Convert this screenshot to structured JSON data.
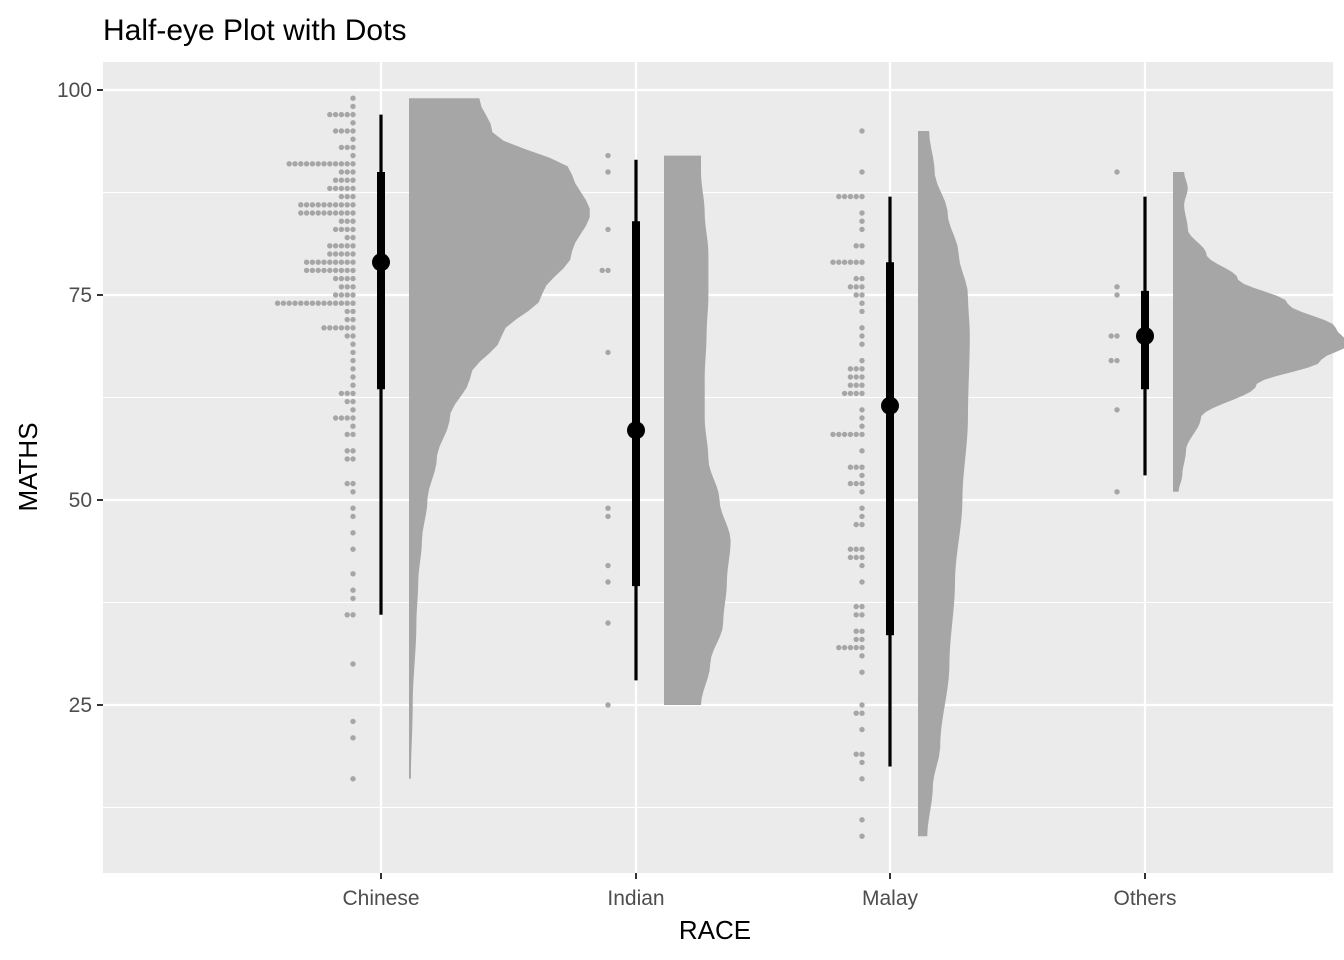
{
  "chart_data": {
    "type": "half-eye",
    "title": "Half-eye Plot with Dots",
    "xlabel": "RACE",
    "ylabel": "MATHS",
    "categories": [
      "Chinese",
      "Indian",
      "Malay",
      "Others"
    ],
    "ylim": [
      5,
      102.5
    ],
    "yticks": [
      25,
      50,
      75,
      100
    ],
    "grid": true,
    "legend": "none",
    "colors": {
      "panel": "#EBEBEB",
      "grid": "#FFFFFF",
      "dots": "#A6A6A6",
      "slab": "#A6A6A6",
      "interval": "#000000"
    },
    "groups": [
      {
        "category": "Chinese",
        "median": 79,
        "q66": [
          63.5,
          90
        ],
        "q95": [
          36,
          97
        ],
        "range": [
          16,
          99
        ],
        "density": [
          [
            16,
            0.01
          ],
          [
            25,
            0.02
          ],
          [
            35,
            0.04
          ],
          [
            40,
            0.05
          ],
          [
            45,
            0.07
          ],
          [
            50,
            0.1
          ],
          [
            55,
            0.15
          ],
          [
            60,
            0.22
          ],
          [
            65,
            0.33
          ],
          [
            70,
            0.5
          ],
          [
            75,
            0.72
          ],
          [
            80,
            0.88
          ],
          [
            85,
            0.98
          ],
          [
            90,
            0.88
          ],
          [
            95,
            0.45
          ],
          [
            99,
            0.38
          ]
        ],
        "dots": [
          [
            99,
            1
          ],
          [
            98,
            1
          ],
          [
            97,
            5
          ],
          [
            96,
            1
          ],
          [
            95,
            4
          ],
          [
            94,
            1
          ],
          [
            93,
            3
          ],
          [
            92,
            1
          ],
          [
            91,
            12
          ],
          [
            90,
            3
          ],
          [
            89,
            4
          ],
          [
            88,
            5
          ],
          [
            87,
            3
          ],
          [
            86,
            10
          ],
          [
            85,
            10
          ],
          [
            84,
            3
          ],
          [
            83,
            4
          ],
          [
            82,
            2
          ],
          [
            81,
            5
          ],
          [
            80,
            5
          ],
          [
            79,
            9
          ],
          [
            78,
            9
          ],
          [
            77,
            4
          ],
          [
            76,
            3
          ],
          [
            75,
            4
          ],
          [
            74,
            14
          ],
          [
            73,
            2
          ],
          [
            72,
            2
          ],
          [
            71,
            6
          ],
          [
            70,
            2
          ],
          [
            69,
            1
          ],
          [
            68,
            1
          ],
          [
            67,
            1
          ],
          [
            66,
            1
          ],
          [
            65,
            1
          ],
          [
            64,
            1
          ],
          [
            63,
            3
          ],
          [
            62,
            2
          ],
          [
            61,
            1
          ],
          [
            60,
            4
          ],
          [
            59,
            1
          ],
          [
            58,
            2
          ],
          [
            56,
            2
          ],
          [
            55,
            2
          ],
          [
            52,
            2
          ],
          [
            51,
            1
          ],
          [
            49,
            1
          ],
          [
            48,
            1
          ],
          [
            46,
            1
          ],
          [
            44,
            1
          ],
          [
            41,
            1
          ],
          [
            39,
            1
          ],
          [
            38,
            1
          ],
          [
            36,
            2
          ],
          [
            30,
            1
          ],
          [
            23,
            1
          ],
          [
            21,
            1
          ],
          [
            16,
            1
          ]
        ]
      },
      {
        "category": "Indian",
        "median": 58.5,
        "q66": [
          39.5,
          84
        ],
        "q95": [
          28,
          91.5
        ],
        "range": [
          25,
          92
        ],
        "density": [
          [
            25,
            0.2
          ],
          [
            30,
            0.25
          ],
          [
            35,
            0.32
          ],
          [
            40,
            0.34
          ],
          [
            45,
            0.36
          ],
          [
            50,
            0.3
          ],
          [
            55,
            0.24
          ],
          [
            60,
            0.22
          ],
          [
            65,
            0.22
          ],
          [
            70,
            0.23
          ],
          [
            75,
            0.24
          ],
          [
            80,
            0.24
          ],
          [
            85,
            0.22
          ],
          [
            90,
            0.2
          ],
          [
            92,
            0.2
          ]
        ],
        "dots": [
          [
            92,
            1
          ],
          [
            90,
            1
          ],
          [
            83,
            1
          ],
          [
            78,
            2
          ],
          [
            68,
            1
          ],
          [
            49,
            1
          ],
          [
            48,
            1
          ],
          [
            42,
            1
          ],
          [
            40,
            1
          ],
          [
            35,
            1
          ],
          [
            25,
            1
          ]
        ]
      },
      {
        "category": "Malay",
        "median": 61.5,
        "q66": [
          33.5,
          79
        ],
        "q95": [
          17.5,
          87
        ],
        "range": [
          9,
          95
        ],
        "density": [
          [
            9,
            0.05
          ],
          [
            15,
            0.08
          ],
          [
            20,
            0.12
          ],
          [
            30,
            0.17
          ],
          [
            40,
            0.2
          ],
          [
            50,
            0.24
          ],
          [
            60,
            0.27
          ],
          [
            70,
            0.28
          ],
          [
            75,
            0.27
          ],
          [
            80,
            0.22
          ],
          [
            85,
            0.16
          ],
          [
            90,
            0.09
          ],
          [
            95,
            0.06
          ]
        ],
        "dots": [
          [
            95,
            1
          ],
          [
            90,
            1
          ],
          [
            87,
            5
          ],
          [
            85,
            1
          ],
          [
            84,
            1
          ],
          [
            83,
            1
          ],
          [
            81,
            2
          ],
          [
            79,
            6
          ],
          [
            77,
            2
          ],
          [
            76,
            3
          ],
          [
            75,
            2
          ],
          [
            74,
            1
          ],
          [
            73,
            1
          ],
          [
            71,
            1
          ],
          [
            70,
            1
          ],
          [
            69,
            1
          ],
          [
            67,
            1
          ],
          [
            66,
            3
          ],
          [
            65,
            3
          ],
          [
            64,
            3
          ],
          [
            63,
            4
          ],
          [
            61,
            1
          ],
          [
            60,
            1
          ],
          [
            59,
            1
          ],
          [
            58,
            6
          ],
          [
            56,
            1
          ],
          [
            54,
            3
          ],
          [
            53,
            1
          ],
          [
            52,
            3
          ],
          [
            51,
            1
          ],
          [
            49,
            1
          ],
          [
            48,
            1
          ],
          [
            47,
            2
          ],
          [
            44,
            3
          ],
          [
            43,
            3
          ],
          [
            42,
            1
          ],
          [
            40,
            1
          ],
          [
            37,
            2
          ],
          [
            36,
            2
          ],
          [
            34,
            2
          ],
          [
            33,
            2
          ],
          [
            32,
            5
          ],
          [
            31,
            1
          ],
          [
            29,
            1
          ],
          [
            25,
            1
          ],
          [
            24,
            2
          ],
          [
            22,
            1
          ],
          [
            19,
            2
          ],
          [
            18,
            1
          ],
          [
            16,
            1
          ],
          [
            11,
            1
          ],
          [
            9,
            1
          ]
        ]
      },
      {
        "category": "Others",
        "median": 70,
        "q66": [
          63.5,
          75.5
        ],
        "q95": [
          53,
          87
        ],
        "range": [
          51,
          90
        ],
        "density": [
          [
            51,
            0.03
          ],
          [
            53,
            0.05
          ],
          [
            56,
            0.07
          ],
          [
            60,
            0.15
          ],
          [
            64,
            0.45
          ],
          [
            67,
            0.8
          ],
          [
            69,
            0.95
          ],
          [
            71,
            0.88
          ],
          [
            74,
            0.62
          ],
          [
            77,
            0.35
          ],
          [
            80,
            0.18
          ],
          [
            83,
            0.08
          ],
          [
            86,
            0.06
          ],
          [
            88,
            0.08
          ],
          [
            90,
            0.06
          ]
        ],
        "dots": [
          [
            90,
            1
          ],
          [
            76,
            1
          ],
          [
            75,
            1
          ],
          [
            70,
            2
          ],
          [
            67,
            2
          ],
          [
            61,
            1
          ],
          [
            51,
            1
          ]
        ]
      }
    ]
  }
}
